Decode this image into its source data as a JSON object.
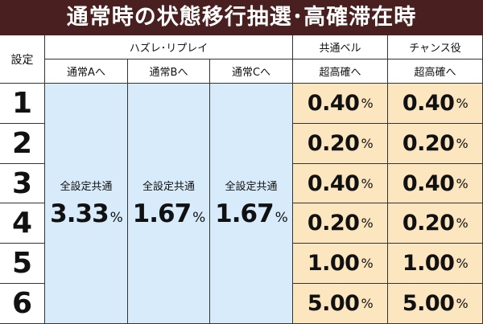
{
  "title": "通常時の状態移行抽選･高確滞在時",
  "headers": {
    "setting": "設定",
    "hazure_replay": "ハズレ･リプレイ",
    "common_bell": "共通ベル",
    "chance_role": "チャンス役",
    "to_normal_a": "通常Aへ",
    "to_normal_b": "通常Bへ",
    "to_normal_c": "通常Cへ",
    "to_super_high_bell": "超高確へ",
    "to_super_high_chance": "超高確へ"
  },
  "common_label": "全設定共通",
  "percent_sign": "%",
  "hazure": {
    "normal_a": "3.33",
    "normal_b": "1.67",
    "normal_c": "1.67"
  },
  "rows": [
    {
      "setting": "1",
      "bell": "0.40",
      "chance": "0.40"
    },
    {
      "setting": "2",
      "bell": "0.20",
      "chance": "0.20"
    },
    {
      "setting": "3",
      "bell": "0.40",
      "chance": "0.40"
    },
    {
      "setting": "4",
      "bell": "0.20",
      "chance": "0.20"
    },
    {
      "setting": "5",
      "bell": "1.00",
      "chance": "1.00"
    },
    {
      "setting": "6",
      "bell": "5.00",
      "chance": "5.00"
    }
  ],
  "colors": {
    "title_bg": "#4a1f1f",
    "hazure_bg": "#d7ebfa",
    "super_high_bg": "#fbe6c0"
  }
}
